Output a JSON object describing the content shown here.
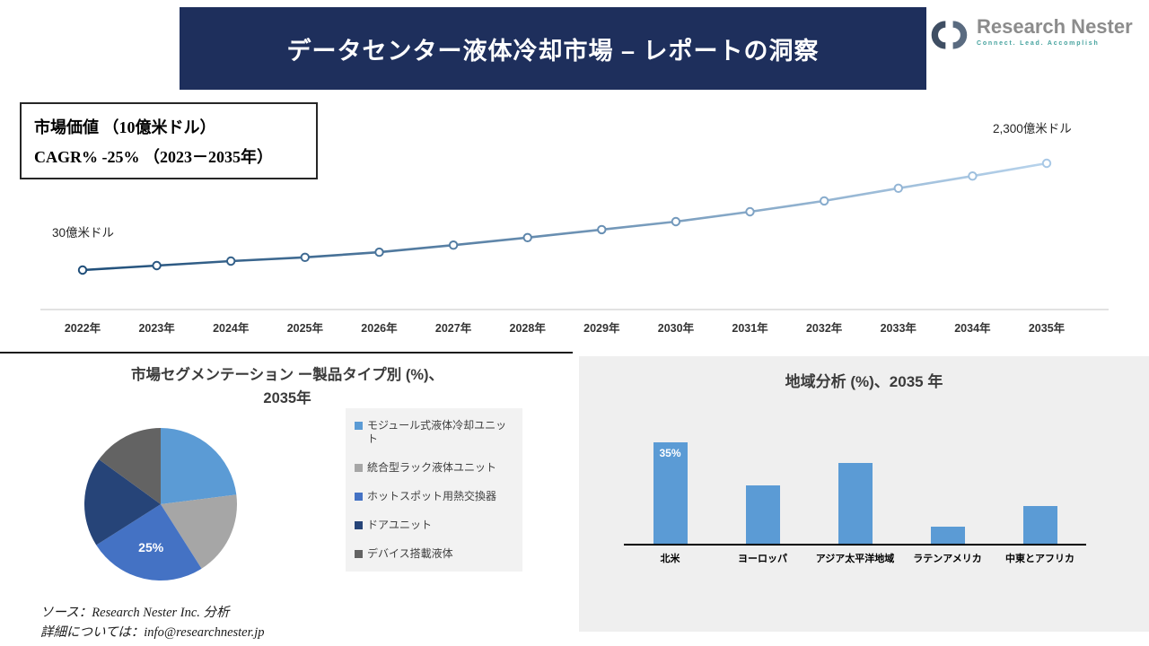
{
  "header": {
    "title": "データセンター液体冷却市場 – レポートの洞察",
    "logo_name": "Research Nester",
    "logo_tagline": "Connect. Lead. Accomplish"
  },
  "info_box": {
    "line1": "市場価値 （10億米ドル）",
    "line2": "CAGR% -25% （2023－2035年）"
  },
  "colors": {
    "banner_bg": "#1e2f5c",
    "line_gradient_start": "#1f4e79",
    "line_gradient_end": "#b7d3ec",
    "marker_start": "#1f4e79",
    "marker_end": "#a8c8e6",
    "axis_line": "#d9d9d9",
    "bar_blue": "#5b9bd5",
    "panel_gray": "#efefef",
    "legend_gray": "#f2f2f2"
  },
  "chart_data": [
    {
      "type": "line",
      "x": [
        "2022年",
        "2023年",
        "2024年",
        "2025年",
        "2026年",
        "2027年",
        "2028年",
        "2029年",
        "2030年",
        "2031年",
        "2032年",
        "2033年",
        "2034年",
        "2035年"
      ],
      "values": [
        30,
        125,
        220,
        300,
        410,
        560,
        720,
        890,
        1060,
        1270,
        1500,
        1770,
        2030,
        2300
      ],
      "ylim": [
        30,
        2300
      ],
      "grid": false,
      "legend": "none",
      "annotations": {
        "start": "30億米ドル",
        "end": "2,300億米ドル"
      }
    },
    {
      "type": "pie",
      "title_line1": "市場セグメンテーション ー製品タイプ別 (%)、",
      "title_line2": "2035年",
      "labels": [
        "モジュール式液体冷却ユニット",
        "統合型ラック液体ユニット",
        "ホットスポット用熱交換器",
        "ドアユニット",
        "デバイス搭載液体"
      ],
      "values": [
        23,
        18,
        25,
        19,
        15
      ],
      "colors": [
        "#5b9bd5",
        "#a6a6a6",
        "#4472c4",
        "#264478",
        "#636363"
      ],
      "data_labels": [
        "",
        "",
        "25%",
        "",
        ""
      ],
      "legend_position": "right"
    },
    {
      "type": "bar",
      "title": "地域分析 (%)、2035 年",
      "categories": [
        "北米",
        "ヨーロッパ",
        "アジア太平洋地域",
        "ラテンアメリカ",
        "中東とアフリカ"
      ],
      "values": [
        35,
        20,
        28,
        6,
        13
      ],
      "data_labels": [
        "35%",
        "",
        "",
        "",
        ""
      ],
      "bar_color": "#5b9bd5",
      "ylim": [
        0,
        40
      ],
      "grid": false
    }
  ],
  "footer": {
    "source_line": "ソース：Research Nester Inc. 分析",
    "contact_line": "詳細については：info@researchnester.jp"
  }
}
